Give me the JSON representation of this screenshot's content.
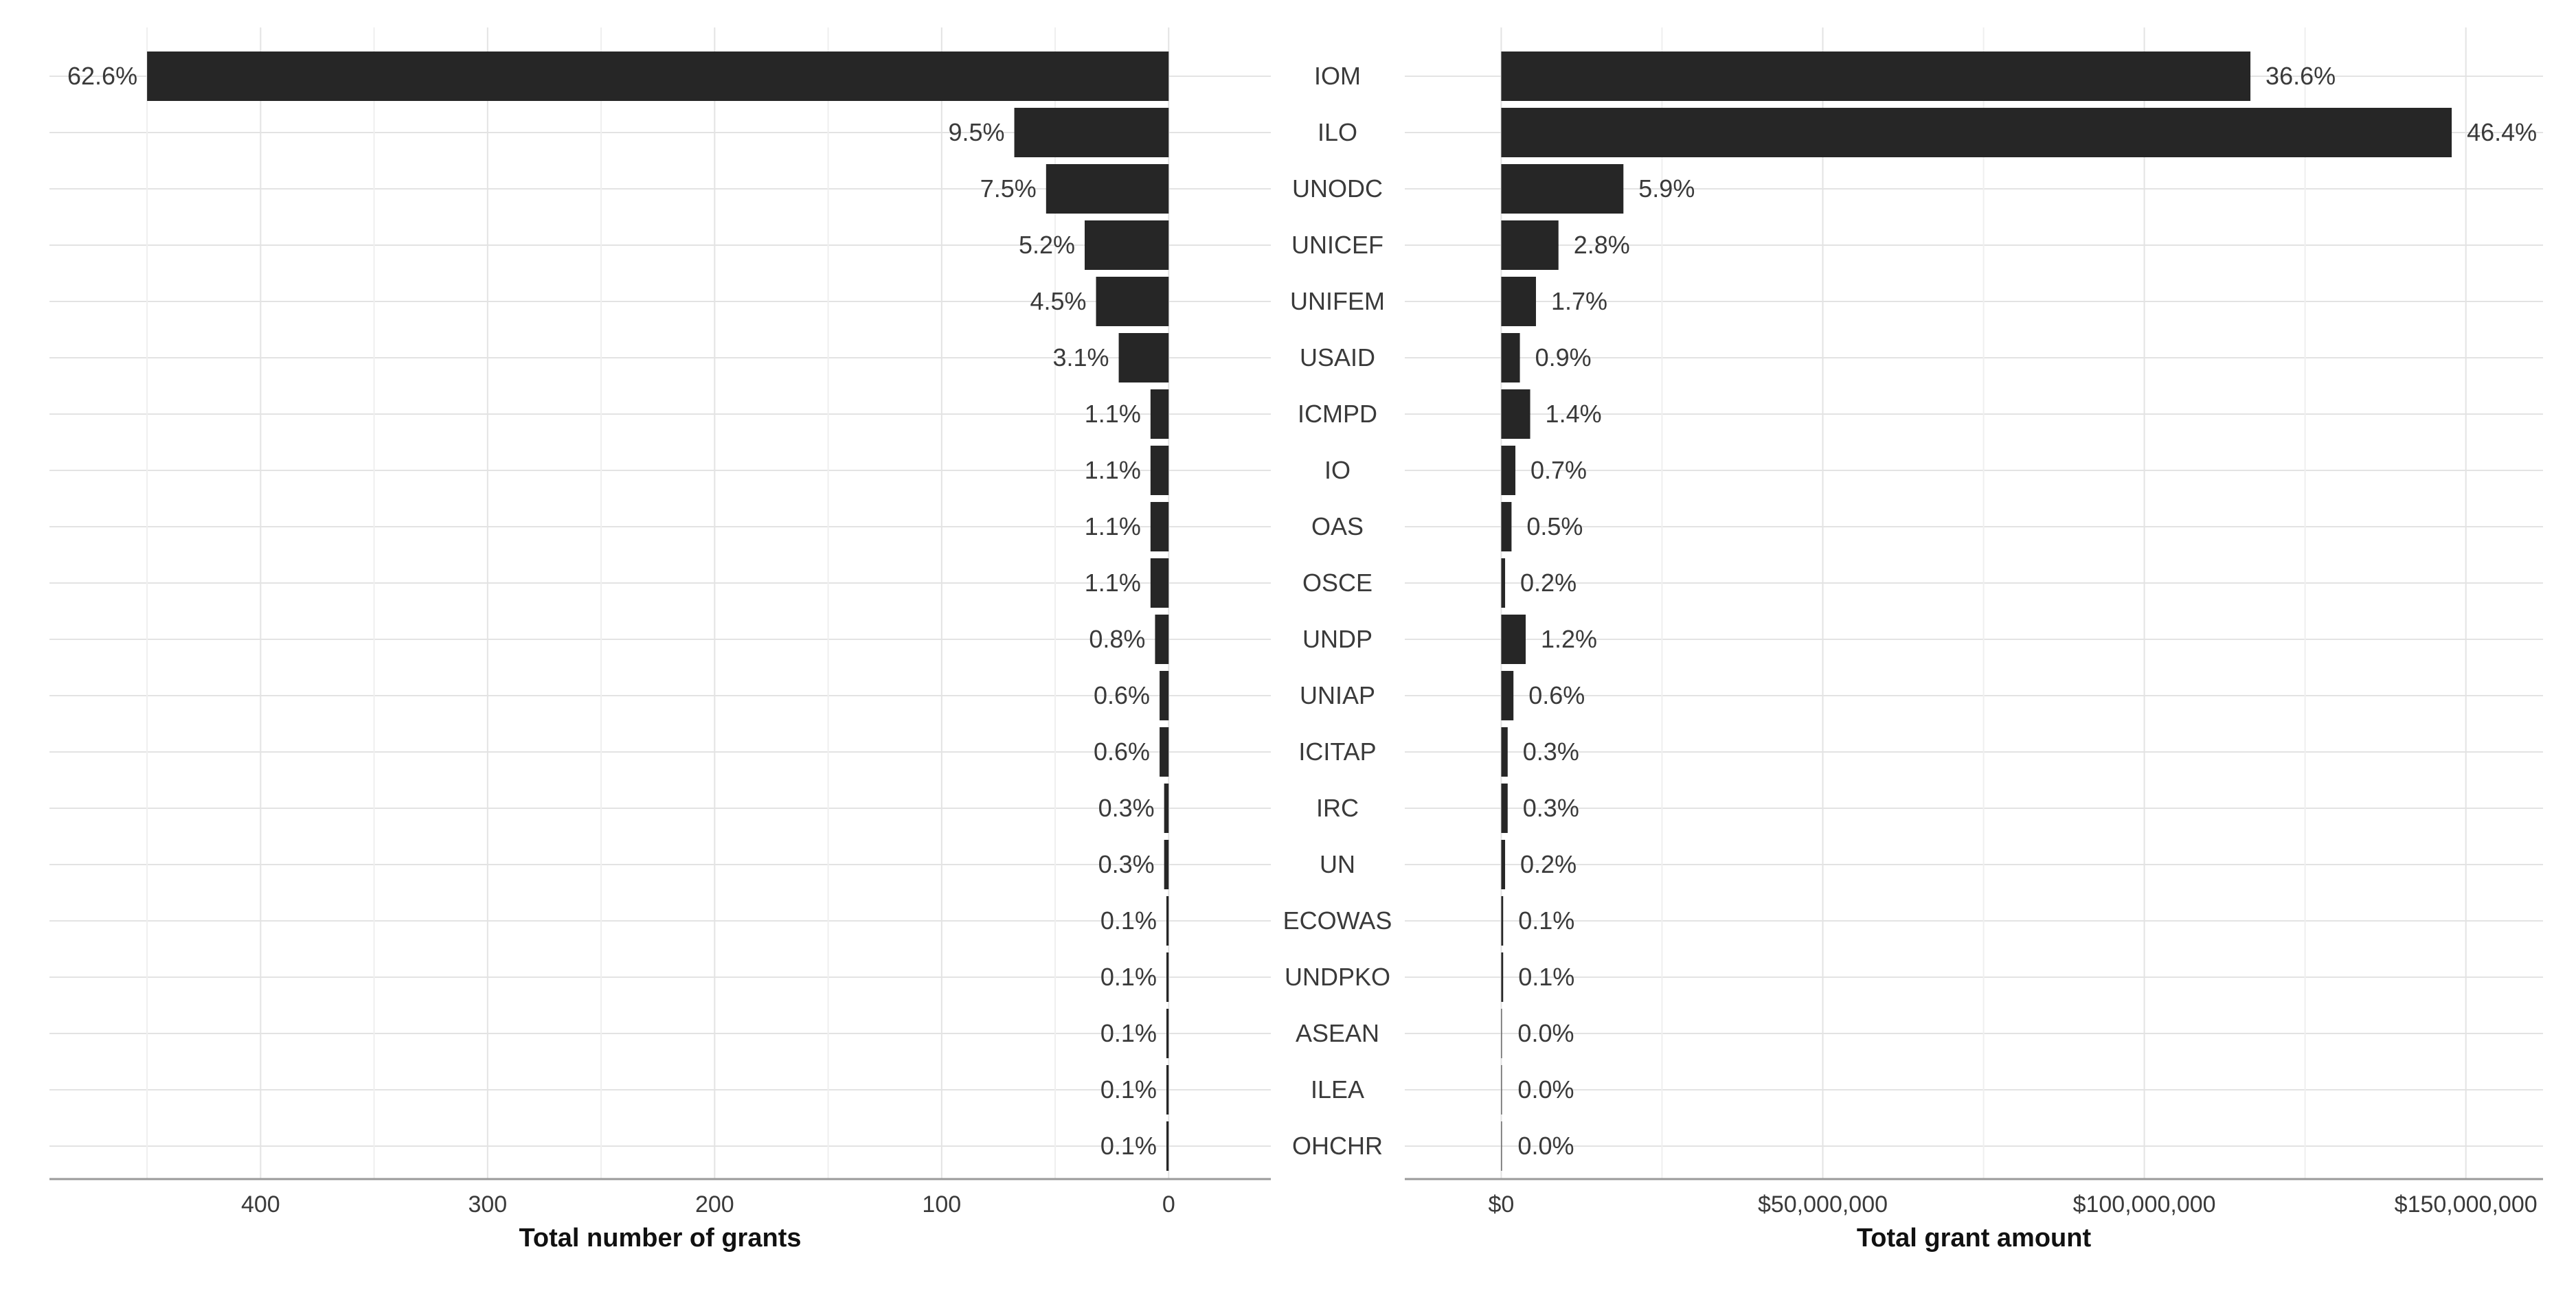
{
  "chart_data": [
    {
      "type": "bar",
      "orientation": "horizontal",
      "direction": "reversed",
      "categories": [
        "IOM",
        "ILO",
        "UNODC",
        "UNICEF",
        "UNIFEM",
        "USAID",
        "ICMPD",
        "IO",
        "OAS",
        "OSCE",
        "UNDP",
        "UNIAP",
        "ICITAP",
        "IRC",
        "UN",
        "ECOWAS",
        "UNDPKO",
        "ASEAN",
        "ILEA",
        "OHCHR"
      ],
      "values": [
        450,
        68,
        54,
        37,
        32,
        22,
        8,
        8,
        8,
        8,
        6,
        4,
        4,
        2,
        2,
        1,
        1,
        1,
        1,
        1
      ],
      "labels": [
        "62.6%",
        "9.5%",
        "7.5%",
        "5.2%",
        "4.5%",
        "3.1%",
        "1.1%",
        "1.1%",
        "1.1%",
        "1.1%",
        "0.8%",
        "0.6%",
        "0.6%",
        "0.3%",
        "0.3%",
        "0.1%",
        "0.1%",
        "0.1%",
        "0.1%",
        "0.1%"
      ],
      "xlabel": "Total number of grants",
      "ylabel": "",
      "xlim": [
        -45,
        493
      ],
      "xticks": [
        400,
        300,
        200,
        100,
        0
      ],
      "xtick_labels": [
        "400",
        "300",
        "200",
        "100",
        "0"
      ],
      "grid": true
    },
    {
      "type": "bar",
      "orientation": "horizontal",
      "categories": [
        "IOM",
        "ILO",
        "UNODC",
        "UNICEF",
        "UNIFEM",
        "USAID",
        "ICMPD",
        "IO",
        "OAS",
        "OSCE",
        "UNDP",
        "UNIAP",
        "ICITAP",
        "IRC",
        "UN",
        "ECOWAS",
        "UNDPKO",
        "ASEAN",
        "ILEA",
        "OHCHR"
      ],
      "values": [
        116500000,
        147800000,
        19000000,
        8900000,
        5400000,
        2900000,
        4500000,
        2200000,
        1600000,
        600000,
        3800000,
        1900000,
        1000000,
        1000000,
        600000,
        300000,
        300000,
        100000,
        100000,
        100000
      ],
      "labels": [
        "36.6%",
        "46.4%",
        "5.9%",
        "2.8%",
        "1.7%",
        "0.9%",
        "1.4%",
        "0.7%",
        "0.5%",
        "0.2%",
        "1.2%",
        "0.6%",
        "0.3%",
        "0.3%",
        "0.2%",
        "0.1%",
        "0.1%",
        "0.0%",
        "0.0%",
        "0.0%"
      ],
      "xlabel": "Total grant amount",
      "ylabel": "",
      "xlim": [
        -15000000,
        162000000
      ],
      "xticks": [
        0,
        50000000,
        100000000,
        150000000
      ],
      "xtick_labels": [
        "$0",
        "$50,000,000",
        "$100,000,000",
        "$150,000,000"
      ],
      "grid": true
    }
  ]
}
